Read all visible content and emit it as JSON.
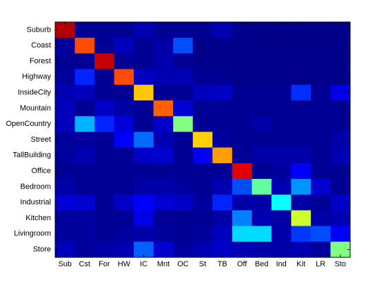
{
  "chart_data": {
    "type": "heatmap",
    "colormap": "jet",
    "clim": [
      0,
      1
    ],
    "x_categories": [
      "Sub",
      "Cst",
      "For",
      "HW",
      "IC",
      "Mnt",
      "OC",
      "St",
      "TB",
      "Off",
      "Bed",
      "Ind",
      "Kit",
      "LR",
      "Sto"
    ],
    "y_categories": [
      "Suburb",
      "Coast",
      "Forest",
      "Highway",
      "InsideCity",
      "Mountain",
      "OpenCountry",
      "Street",
      "TallBuilding",
      "Office",
      "Bedroom",
      "Industrial",
      "Kitchen",
      "Livingroom",
      "Store"
    ],
    "values": [
      [
        0.95,
        0.02,
        0.02,
        0.02,
        0.05,
        0.02,
        0.02,
        0.02,
        0.05,
        0.01,
        0.01,
        0.01,
        0.01,
        0.01,
        0.01
      ],
      [
        0.03,
        0.8,
        0.02,
        0.06,
        0.02,
        0.04,
        0.2,
        0.01,
        0.01,
        0.01,
        0.01,
        0.01,
        0.01,
        0.01,
        0.01
      ],
      [
        0.02,
        0.02,
        0.93,
        0.02,
        0.02,
        0.05,
        0.02,
        0.01,
        0.01,
        0.01,
        0.01,
        0.01,
        0.01,
        0.01,
        0.01
      ],
      [
        0.03,
        0.16,
        0.02,
        0.8,
        0.06,
        0.05,
        0.05,
        0.02,
        0.02,
        0.01,
        0.01,
        0.01,
        0.01,
        0.01,
        0.01
      ],
      [
        0.05,
        0.06,
        0.02,
        0.02,
        0.68,
        0.02,
        0.02,
        0.06,
        0.07,
        0.02,
        0.02,
        0.02,
        0.17,
        0.02,
        0.1
      ],
      [
        0.06,
        0.02,
        0.07,
        0.04,
        0.02,
        0.78,
        0.08,
        0.02,
        0.02,
        0.02,
        0.02,
        0.02,
        0.02,
        0.02,
        0.02
      ],
      [
        0.06,
        0.3,
        0.16,
        0.09,
        0.02,
        0.07,
        0.5,
        0.02,
        0.02,
        0.02,
        0.04,
        0.02,
        0.02,
        0.02,
        0.02
      ],
      [
        0.03,
        0.03,
        0.02,
        0.12,
        0.23,
        0.05,
        0.02,
        0.67,
        0.03,
        0.02,
        0.02,
        0.02,
        0.02,
        0.02,
        0.04
      ],
      [
        0.03,
        0.05,
        0.02,
        0.02,
        0.07,
        0.08,
        0.02,
        0.12,
        0.72,
        0.02,
        0.04,
        0.04,
        0.04,
        0.02,
        0.05
      ],
      [
        0.02,
        0.02,
        0.02,
        0.02,
        0.02,
        0.02,
        0.02,
        0.02,
        0.02,
        0.9,
        0.02,
        0.03,
        0.12,
        0.02,
        0.02
      ],
      [
        0.04,
        0.02,
        0.02,
        0.02,
        0.04,
        0.04,
        0.03,
        0.02,
        0.05,
        0.2,
        0.47,
        0.05,
        0.27,
        0.08,
        0.02
      ],
      [
        0.09,
        0.08,
        0.02,
        0.07,
        0.12,
        0.08,
        0.07,
        0.03,
        0.16,
        0.04,
        0.04,
        0.38,
        0.04,
        0.02,
        0.07
      ],
      [
        0.03,
        0.03,
        0.02,
        0.02,
        0.1,
        0.02,
        0.02,
        0.02,
        0.04,
        0.25,
        0.05,
        0.04,
        0.58,
        0.04,
        0.05
      ],
      [
        0.03,
        0.03,
        0.02,
        0.03,
        0.04,
        0.03,
        0.02,
        0.03,
        0.06,
        0.34,
        0.34,
        0.04,
        0.18,
        0.2,
        0.12
      ],
      [
        0.06,
        0.03,
        0.04,
        0.05,
        0.22,
        0.08,
        0.03,
        0.05,
        0.07,
        0.05,
        0.04,
        0.04,
        0.05,
        0.03,
        0.5
      ]
    ]
  }
}
